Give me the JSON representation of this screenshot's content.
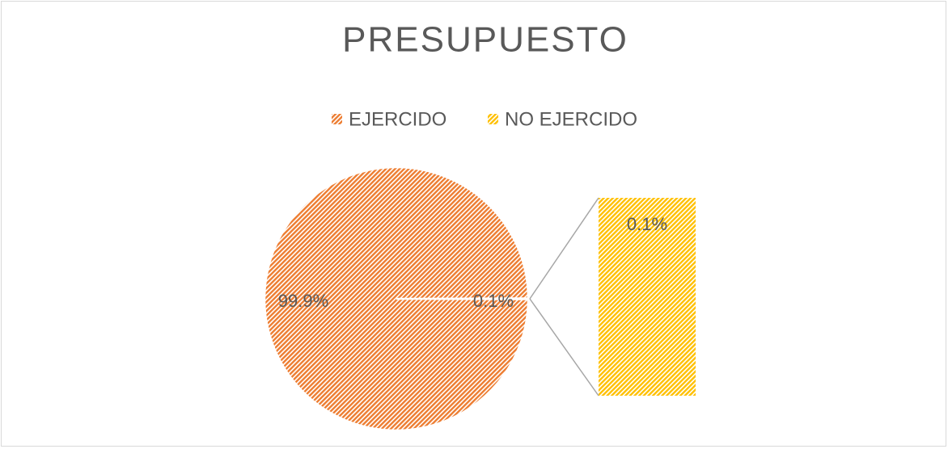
{
  "chart_data": {
    "type": "pie",
    "title": "PRESUPUESTO",
    "categories": [
      "EJERCIDO",
      "NO EJERCIDO"
    ],
    "values": [
      99.9,
      0.1
    ],
    "value_labels": [
      "99.9%",
      "0.1%"
    ],
    "colors": [
      "#ED7D31",
      "#FFC000"
    ],
    "legend": "top"
  }
}
